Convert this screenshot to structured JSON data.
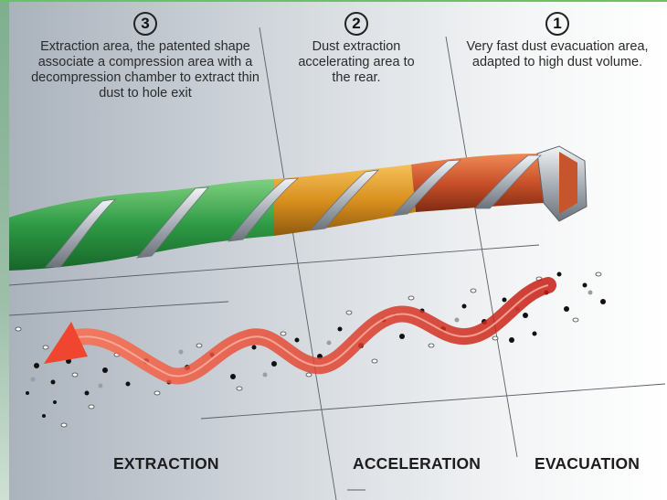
{
  "steps": [
    {
      "number": "3",
      "text": "Extraction area, the patented shape associate a compression area with a decompression chamber to extract thin dust to hole exit"
    },
    {
      "number": "2",
      "text": "Dust extraction accelerating area to the rear."
    },
    {
      "number": "1",
      "text": "Very fast dust evacuation area, adapted to high dust volume."
    }
  ],
  "zones": {
    "extraction": "EXTRACTION",
    "acceleration": "ACCELERATION",
    "evacuation": "EVACUATION"
  },
  "colors": {
    "extraction_zone": "#2e9a45",
    "acceleration_zone": "#d9901f",
    "evacuation_zone": "#c9512a",
    "flow_arrow": "#e8402e",
    "steel": "#b9bec4"
  },
  "icons": [
    "drill-bit",
    "dust-particles",
    "flow-arrow"
  ]
}
